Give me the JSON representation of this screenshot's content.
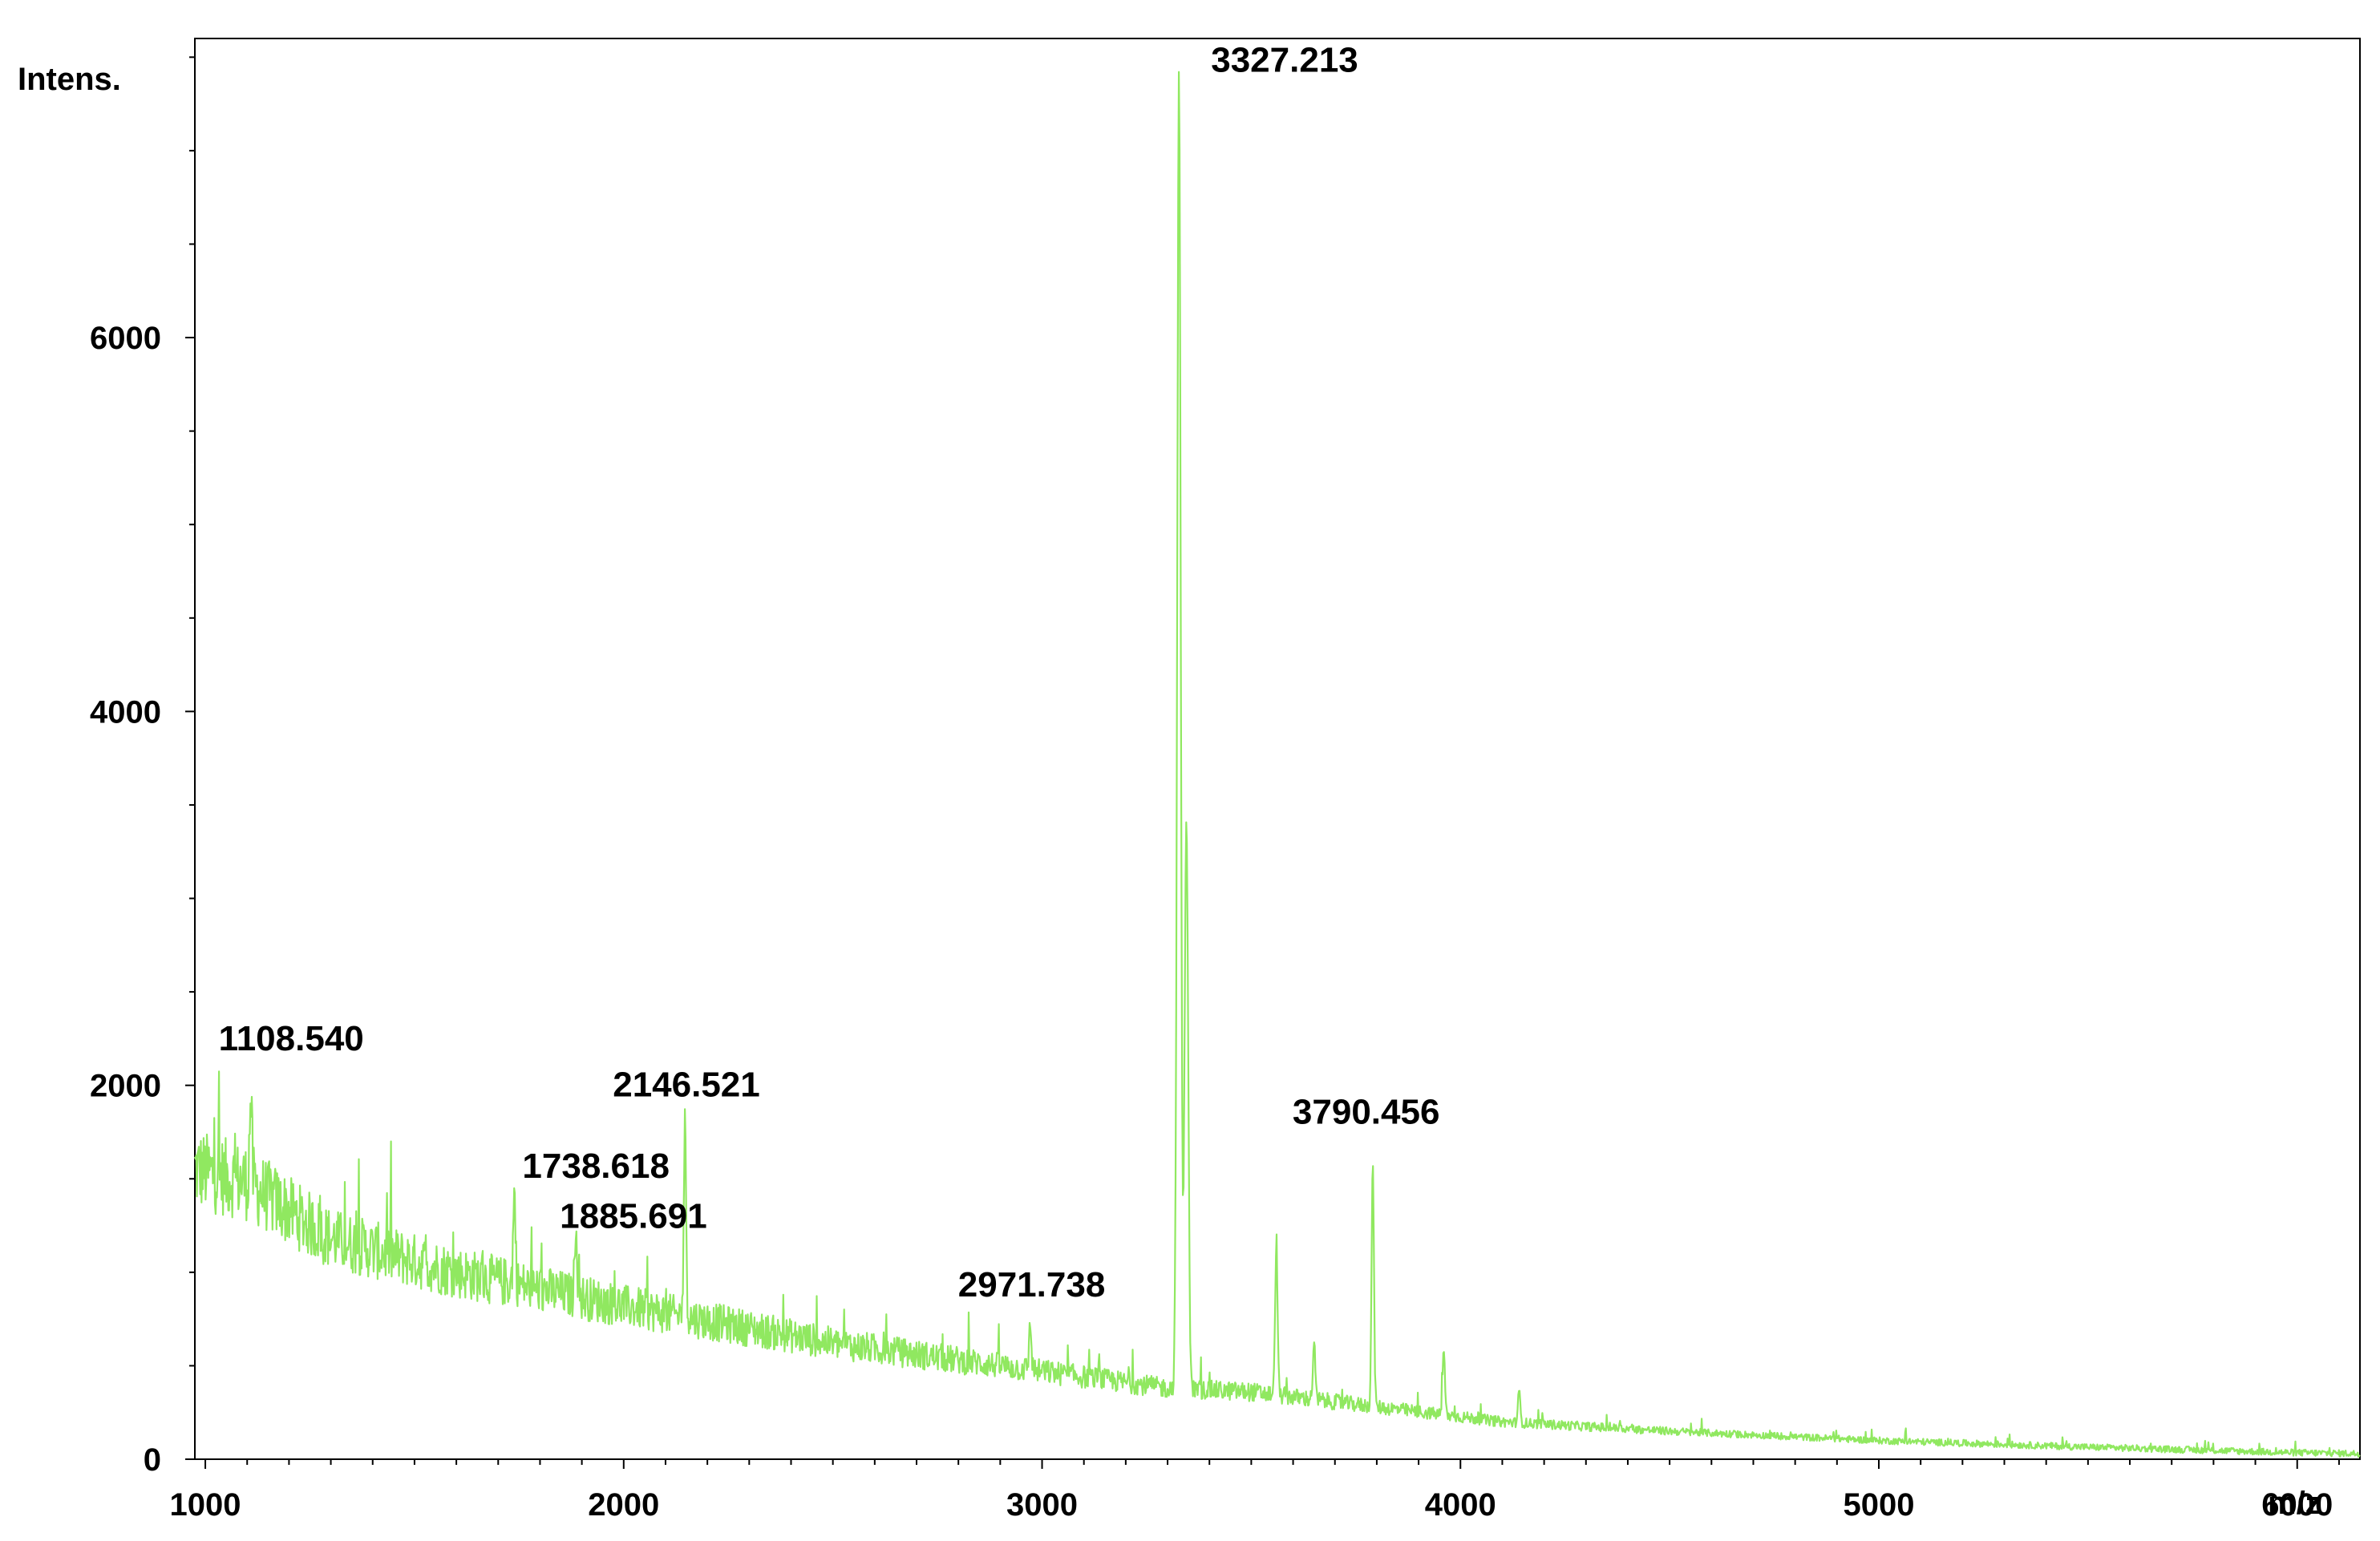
{
  "chart_data": {
    "type": "line",
    "ylabel": "Intens.",
    "xlabel": "m/z",
    "xlim": [
      975,
      6150
    ],
    "ylim": [
      0,
      7600
    ],
    "x_ticks": [
      1000,
      2000,
      3000,
      4000,
      5000,
      6000
    ],
    "y_ticks": [
      0,
      2000,
      4000,
      6000
    ],
    "y_minor_step": 500,
    "x_minor_step": 100,
    "grid": false,
    "line_color": "#90e860",
    "baseline": [
      {
        "x": 975,
        "y": 1550
      },
      {
        "x": 1100,
        "y": 1480
      },
      {
        "x": 1300,
        "y": 1180
      },
      {
        "x": 1600,
        "y": 1000
      },
      {
        "x": 2000,
        "y": 820
      },
      {
        "x": 2500,
        "y": 620
      },
      {
        "x": 3000,
        "y": 470
      },
      {
        "x": 3300,
        "y": 380
      },
      {
        "x": 3500,
        "y": 360
      },
      {
        "x": 3800,
        "y": 280
      },
      {
        "x": 4100,
        "y": 200
      },
      {
        "x": 4500,
        "y": 150
      },
      {
        "x": 5000,
        "y": 100
      },
      {
        "x": 5500,
        "y": 65
      },
      {
        "x": 6000,
        "y": 35
      },
      {
        "x": 6150,
        "y": 30
      }
    ],
    "peaks": [
      {
        "x": 1108.54,
        "y": 1930,
        "label": "1108.540"
      },
      {
        "x": 1738.618,
        "y": 1420,
        "label": "1738.618"
      },
      {
        "x": 1885.691,
        "y": 1280,
        "label": "1885.691"
      },
      {
        "x": 2146.521,
        "y": 1790,
        "label": "2146.521"
      },
      {
        "x": 2971.738,
        "y": 720,
        "label": "2971.738"
      },
      {
        "x": 3327.213,
        "y": 7380,
        "label": "3327.213"
      },
      {
        "x": 3345,
        "y": 3450,
        "label": ""
      },
      {
        "x": 3560,
        "y": 1180,
        "label": ""
      },
      {
        "x": 3650,
        "y": 620,
        "label": ""
      },
      {
        "x": 3790.456,
        "y": 1560,
        "label": "3790.456"
      },
      {
        "x": 3960,
        "y": 580,
        "label": ""
      },
      {
        "x": 4140,
        "y": 360,
        "label": ""
      }
    ],
    "peak_label_offsets": {
      "1108.540": [
        -40,
        -60
      ],
      "1738.618": [
        10,
        -20
      ],
      "1885.691": [
        -20,
        10
      ],
      "2146.521": [
        -90,
        -35
      ],
      "2971.738": [
        -90,
        -35
      ],
      "3327.213": [
        40,
        -10
      ],
      "3790.456": [
        -100,
        -55
      ]
    }
  }
}
